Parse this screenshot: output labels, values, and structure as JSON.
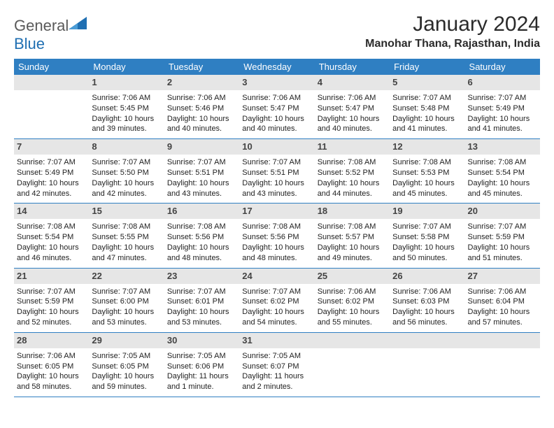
{
  "brand": {
    "word1": "General",
    "word2": "Blue"
  },
  "title": "January 2024",
  "location": "Manohar Thana, Rajasthan, India",
  "dayHeaders": [
    "Sunday",
    "Monday",
    "Tuesday",
    "Wednesday",
    "Thursday",
    "Friday",
    "Saturday"
  ],
  "colors": {
    "header_bg": "#2f7fc2",
    "stripe_bg": "#e6e6e6",
    "border": "#2f7fc2"
  },
  "weeks": [
    {
      "nums": [
        "",
        "1",
        "2",
        "3",
        "4",
        "5",
        "6"
      ],
      "cells": [
        {
          "sunrise": "",
          "sunset": "",
          "daylight": ""
        },
        {
          "sunrise": "Sunrise: 7:06 AM",
          "sunset": "Sunset: 5:45 PM",
          "daylight": "Daylight: 10 hours and 39 minutes."
        },
        {
          "sunrise": "Sunrise: 7:06 AM",
          "sunset": "Sunset: 5:46 PM",
          "daylight": "Daylight: 10 hours and 40 minutes."
        },
        {
          "sunrise": "Sunrise: 7:06 AM",
          "sunset": "Sunset: 5:47 PM",
          "daylight": "Daylight: 10 hours and 40 minutes."
        },
        {
          "sunrise": "Sunrise: 7:06 AM",
          "sunset": "Sunset: 5:47 PM",
          "daylight": "Daylight: 10 hours and 40 minutes."
        },
        {
          "sunrise": "Sunrise: 7:07 AM",
          "sunset": "Sunset: 5:48 PM",
          "daylight": "Daylight: 10 hours and 41 minutes."
        },
        {
          "sunrise": "Sunrise: 7:07 AM",
          "sunset": "Sunset: 5:49 PM",
          "daylight": "Daylight: 10 hours and 41 minutes."
        }
      ]
    },
    {
      "nums": [
        "7",
        "8",
        "9",
        "10",
        "11",
        "12",
        "13"
      ],
      "cells": [
        {
          "sunrise": "Sunrise: 7:07 AM",
          "sunset": "Sunset: 5:49 PM",
          "daylight": "Daylight: 10 hours and 42 minutes."
        },
        {
          "sunrise": "Sunrise: 7:07 AM",
          "sunset": "Sunset: 5:50 PM",
          "daylight": "Daylight: 10 hours and 42 minutes."
        },
        {
          "sunrise": "Sunrise: 7:07 AM",
          "sunset": "Sunset: 5:51 PM",
          "daylight": "Daylight: 10 hours and 43 minutes."
        },
        {
          "sunrise": "Sunrise: 7:07 AM",
          "sunset": "Sunset: 5:51 PM",
          "daylight": "Daylight: 10 hours and 43 minutes."
        },
        {
          "sunrise": "Sunrise: 7:08 AM",
          "sunset": "Sunset: 5:52 PM",
          "daylight": "Daylight: 10 hours and 44 minutes."
        },
        {
          "sunrise": "Sunrise: 7:08 AM",
          "sunset": "Sunset: 5:53 PM",
          "daylight": "Daylight: 10 hours and 45 minutes."
        },
        {
          "sunrise": "Sunrise: 7:08 AM",
          "sunset": "Sunset: 5:54 PM",
          "daylight": "Daylight: 10 hours and 45 minutes."
        }
      ]
    },
    {
      "nums": [
        "14",
        "15",
        "16",
        "17",
        "18",
        "19",
        "20"
      ],
      "cells": [
        {
          "sunrise": "Sunrise: 7:08 AM",
          "sunset": "Sunset: 5:54 PM",
          "daylight": "Daylight: 10 hours and 46 minutes."
        },
        {
          "sunrise": "Sunrise: 7:08 AM",
          "sunset": "Sunset: 5:55 PM",
          "daylight": "Daylight: 10 hours and 47 minutes."
        },
        {
          "sunrise": "Sunrise: 7:08 AM",
          "sunset": "Sunset: 5:56 PM",
          "daylight": "Daylight: 10 hours and 48 minutes."
        },
        {
          "sunrise": "Sunrise: 7:08 AM",
          "sunset": "Sunset: 5:56 PM",
          "daylight": "Daylight: 10 hours and 48 minutes."
        },
        {
          "sunrise": "Sunrise: 7:08 AM",
          "sunset": "Sunset: 5:57 PM",
          "daylight": "Daylight: 10 hours and 49 minutes."
        },
        {
          "sunrise": "Sunrise: 7:07 AM",
          "sunset": "Sunset: 5:58 PM",
          "daylight": "Daylight: 10 hours and 50 minutes."
        },
        {
          "sunrise": "Sunrise: 7:07 AM",
          "sunset": "Sunset: 5:59 PM",
          "daylight": "Daylight: 10 hours and 51 minutes."
        }
      ]
    },
    {
      "nums": [
        "21",
        "22",
        "23",
        "24",
        "25",
        "26",
        "27"
      ],
      "cells": [
        {
          "sunrise": "Sunrise: 7:07 AM",
          "sunset": "Sunset: 5:59 PM",
          "daylight": "Daylight: 10 hours and 52 minutes."
        },
        {
          "sunrise": "Sunrise: 7:07 AM",
          "sunset": "Sunset: 6:00 PM",
          "daylight": "Daylight: 10 hours and 53 minutes."
        },
        {
          "sunrise": "Sunrise: 7:07 AM",
          "sunset": "Sunset: 6:01 PM",
          "daylight": "Daylight: 10 hours and 53 minutes."
        },
        {
          "sunrise": "Sunrise: 7:07 AM",
          "sunset": "Sunset: 6:02 PM",
          "daylight": "Daylight: 10 hours and 54 minutes."
        },
        {
          "sunrise": "Sunrise: 7:06 AM",
          "sunset": "Sunset: 6:02 PM",
          "daylight": "Daylight: 10 hours and 55 minutes."
        },
        {
          "sunrise": "Sunrise: 7:06 AM",
          "sunset": "Sunset: 6:03 PM",
          "daylight": "Daylight: 10 hours and 56 minutes."
        },
        {
          "sunrise": "Sunrise: 7:06 AM",
          "sunset": "Sunset: 6:04 PM",
          "daylight": "Daylight: 10 hours and 57 minutes."
        }
      ]
    },
    {
      "nums": [
        "28",
        "29",
        "30",
        "31",
        "",
        "",
        ""
      ],
      "cells": [
        {
          "sunrise": "Sunrise: 7:06 AM",
          "sunset": "Sunset: 6:05 PM",
          "daylight": "Daylight: 10 hours and 58 minutes."
        },
        {
          "sunrise": "Sunrise: 7:05 AM",
          "sunset": "Sunset: 6:05 PM",
          "daylight": "Daylight: 10 hours and 59 minutes."
        },
        {
          "sunrise": "Sunrise: 7:05 AM",
          "sunset": "Sunset: 6:06 PM",
          "daylight": "Daylight: 11 hours and 1 minute."
        },
        {
          "sunrise": "Sunrise: 7:05 AM",
          "sunset": "Sunset: 6:07 PM",
          "daylight": "Daylight: 11 hours and 2 minutes."
        },
        {
          "sunrise": "",
          "sunset": "",
          "daylight": ""
        },
        {
          "sunrise": "",
          "sunset": "",
          "daylight": ""
        },
        {
          "sunrise": "",
          "sunset": "",
          "daylight": ""
        }
      ]
    }
  ]
}
